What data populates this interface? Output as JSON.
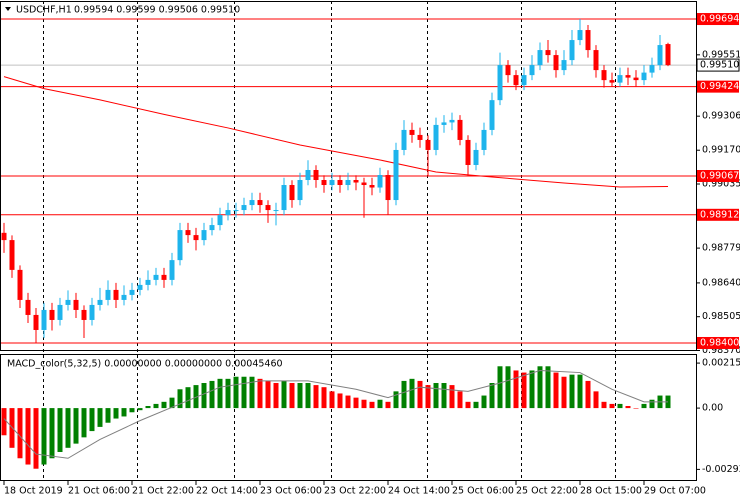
{
  "chart_data": {
    "type": "candlestick",
    "title": "USDCHF,H1",
    "subtitle": "0.99594 0.99599 0.99506 0.99510",
    "open": [
      0.9884,
      0.98811,
      0.98692,
      0.98572,
      0.98512,
      0.98452,
      0.98532,
      0.98492,
      0.98552,
      0.98572,
      0.98532,
      0.98492,
      0.98552,
      0.98572,
      0.98612,
      0.98572,
      0.98592,
      0.98612,
      0.98632,
      0.98652,
      0.98672,
      0.98652,
      0.98731,
      0.98851,
      0.98831,
      0.98811,
      0.98851,
      0.98871,
      0.98911,
      0.98931,
      0.98931,
      0.98951,
      0.98971,
      0.98951,
      0.98931,
      0.98931,
      0.99031,
      0.98971,
      0.99051,
      0.99091,
      0.99051,
      0.99031,
      0.99051,
      0.99031,
      0.99051,
      0.99041,
      0.99031,
      0.99021,
      0.99071,
      0.98971,
      0.99171,
      0.99251,
      0.99231,
      0.99211,
      0.99171,
      0.99271,
      0.99281,
      0.99291,
      0.99211,
      0.99111,
      0.99171,
      0.99251,
      0.9937,
      0.9951,
      0.9947,
      0.9943,
      0.9947,
      0.9951,
      0.9957,
      0.9955,
      0.9949,
      0.9953,
      0.9961,
      0.9965,
      0.9957,
      0.9949,
      0.9945,
      0.9944,
      0.9947,
      0.9946,
      0.9945,
      0.9948,
      0.9951,
      0.99594
    ],
    "high": [
      0.9888,
      0.9883,
      0.9871,
      0.986,
      0.9854,
      0.9856,
      0.9856,
      0.9858,
      0.9861,
      0.986,
      0.9855,
      0.9858,
      0.9862,
      0.9865,
      0.9864,
      0.9863,
      0.9864,
      0.9866,
      0.9869,
      0.987,
      0.987,
      0.9876,
      0.9888,
      0.9888,
      0.9886,
      0.9888,
      0.989,
      0.9894,
      0.9896,
      0.9896,
      0.9898,
      0.99,
      0.99,
      0.9897,
      0.9896,
      0.9906,
      0.9905,
      0.9908,
      0.9913,
      0.9911,
      0.9907,
      0.9908,
      0.9907,
      0.9908,
      0.9907,
      0.9906,
      0.9906,
      0.991,
      0.9909,
      0.992,
      0.9929,
      0.9928,
      0.9926,
      0.9923,
      0.993,
      0.9931,
      0.9932,
      0.9931,
      0.9923,
      0.992,
      0.9928,
      0.994,
      0.9956,
      0.9953,
      0.9949,
      0.995,
      0.9955,
      0.996,
      0.9961,
      0.9957,
      0.9957,
      0.9965,
      0.99694,
      0.9967,
      0.9959,
      0.9951,
      0.9948,
      0.995,
      0.995,
      0.9949,
      0.9951,
      0.9954,
      0.9963,
      0.99599
    ],
    "low": [
      0.9876,
      0.9866,
      0.9854,
      0.9848,
      0.984,
      0.9842,
      0.9845,
      0.9847,
      0.9853,
      0.985,
      0.9842,
      0.9847,
      0.9853,
      0.9855,
      0.9854,
      0.9855,
      0.9857,
      0.9859,
      0.9861,
      0.9863,
      0.9862,
      0.9863,
      0.9871,
      0.988,
      0.9877,
      0.9879,
      0.9883,
      0.9885,
      0.9889,
      0.989,
      0.9891,
      0.9893,
      0.9892,
      0.9888,
      0.9887,
      0.9891,
      0.9894,
      0.9895,
      0.9903,
      0.9902,
      0.99,
      0.9901,
      0.99,
      0.9901,
      0.9901,
      0.989,
      0.9899,
      0.99,
      0.98912,
      0.9895,
      0.9915,
      0.992,
      0.9918,
      0.99067,
      0.9915,
      0.9924,
      0.9925,
      0.9919,
      0.99067,
      0.9909,
      0.9915,
      0.9923,
      0.9935,
      0.9944,
      0.9941,
      0.9941,
      0.9945,
      0.9949,
      0.9952,
      0.9946,
      0.9947,
      0.9951,
      0.9959,
      0.9954,
      0.9946,
      0.9942,
      0.99424,
      0.99424,
      0.9943,
      0.99424,
      0.9943,
      0.9946,
      0.9949,
      0.99506
    ],
    "close": [
      0.98811,
      0.98692,
      0.98572,
      0.98512,
      0.98452,
      0.98532,
      0.98492,
      0.98552,
      0.98572,
      0.98532,
      0.98492,
      0.98552,
      0.98572,
      0.98612,
      0.98572,
      0.98592,
      0.98612,
      0.98632,
      0.98652,
      0.98672,
      0.98652,
      0.98731,
      0.98851,
      0.98831,
      0.98811,
      0.98851,
      0.98871,
      0.98911,
      0.98931,
      0.98931,
      0.98951,
      0.98971,
      0.98951,
      0.98931,
      0.98931,
      0.99031,
      0.98971,
      0.99051,
      0.99091,
      0.99051,
      0.99031,
      0.99051,
      0.99031,
      0.99051,
      0.99041,
      0.99031,
      0.99021,
      0.99071,
      0.98971,
      0.99171,
      0.99251,
      0.99231,
      0.99211,
      0.99171,
      0.99271,
      0.99281,
      0.99291,
      0.99211,
      0.99111,
      0.99171,
      0.99251,
      0.9937,
      0.9951,
      0.9947,
      0.9943,
      0.9947,
      0.9951,
      0.9957,
      0.9955,
      0.9949,
      0.9953,
      0.9961,
      0.9965,
      0.9957,
      0.9949,
      0.9945,
      0.9944,
      0.9947,
      0.9946,
      0.9945,
      0.9948,
      0.9951,
      0.9959,
      0.9951
    ],
    "up_color": "#1eb4ec",
    "down_color": "#ff0000",
    "xlim": [
      -0.5,
      86.125
    ],
    "xticks": [
      {
        "value": 0,
        "label": "18 Oct 2019"
      },
      {
        "value": 8,
        "label": "21 Oct 06:00"
      },
      {
        "value": 16,
        "label": "21 Oct 22:00"
      },
      {
        "value": 24,
        "label": "22 Oct 14:00"
      },
      {
        "value": 32,
        "label": "23 Oct 06:00"
      },
      {
        "value": 40,
        "label": "23 Oct 22:00"
      },
      {
        "value": 48,
        "label": "24 Oct 14:00"
      },
      {
        "value": 56,
        "label": "25 Oct 06:00"
      },
      {
        "value": 64,
        "label": "25 Oct 22:00"
      },
      {
        "value": 72,
        "label": "28 Oct 15:00"
      },
      {
        "value": 80,
        "label": "29 Oct 07:00"
      }
    ],
    "ylim": [
      0.98372,
      0.99766
    ],
    "yticks": [
      0.99551,
      0.99306,
      {
        "value": 0.9917,
        "label": "0.99170"
      },
      0.99035,
      0.98779,
      {
        "value": 0.9864,
        "label": "0.98640"
      },
      0.98505,
      {
        "value": 0.9837,
        "label": "0.98370"
      }
    ],
    "levels": [
      0.99694,
      0.99424,
      0.99067,
      0.98912,
      {
        "value": 0.984,
        "label": "0.98400"
      }
    ],
    "level_color": "#ff0000",
    "bid": {
      "value": 0.9951,
      "label": "0.99510"
    },
    "bid_color": "#c0c0c0",
    "ma": {
      "color": "#ff0000",
      "x": [
        0,
        5,
        12,
        20,
        28,
        37,
        47,
        54,
        61,
        70,
        77,
        83
      ],
      "values": [
        0.99464,
        0.99416,
        0.99371,
        0.99313,
        0.99259,
        0.99191,
        0.99131,
        0.99083,
        0.99063,
        0.99039,
        0.99023,
        0.99025
      ]
    },
    "macd": {
      "type": "bar",
      "title": "MACD_color(5,32,5) 0.00000000 0.00000000 0.00045460",
      "values": [
        -0.0013,
        -0.0019,
        -0.0024,
        -0.0027,
        -0.0029,
        -0.0027,
        -0.0024,
        -0.0021,
        -0.0019,
        -0.0017,
        -0.0014,
        -0.0011,
        -0.0009,
        -0.0007,
        -0.0005,
        -0.0004,
        -0.0002,
        -0.0001,
        0.0001,
        0.0002,
        0.0003,
        0.0005,
        0.0009,
        0.001,
        0.0011,
        0.0012,
        0.0013,
        0.0014,
        0.0014,
        0.0015,
        0.0015,
        0.0015,
        0.0014,
        0.0013,
        0.0012,
        0.0013,
        0.0012,
        0.0012,
        0.0012,
        0.0011,
        0.001,
        0.0008,
        0.0007,
        0.0006,
        0.0005,
        0.0004,
        0.0003,
        0.0004,
        0.0003,
        0.0008,
        0.0013,
        0.0014,
        0.0013,
        0.0011,
        0.0012,
        0.0012,
        0.0011,
        0.0008,
        0.0003,
        0.0003,
        0.0006,
        0.0012,
        0.002,
        0.002,
        0.0018,
        0.0017,
        0.0018,
        0.002,
        0.002,
        0.0017,
        0.0015,
        0.0016,
        0.0016,
        0.0013,
        0.0008,
        0.0003,
        0.0002,
        0.0002,
        0.0001,
        0,
        0.0002,
        0.0004,
        0.0006,
        0.0006
      ],
      "up_color": "#008000",
      "down_color": "#ff0000",
      "signal": {
        "color": "#808080",
        "x": [
          0,
          4,
          8,
          12,
          17,
          22,
          27,
          32,
          38,
          44,
          48,
          52,
          58,
          62,
          67,
          72,
          76,
          80,
          83
        ],
        "values": [
          -0.0005,
          -0.0022,
          -0.0024,
          -0.0015,
          -0.0006,
          0.0002,
          0.001,
          0.0013,
          0.0013,
          0.0009,
          0.0005,
          0.001,
          0.0008,
          0.0012,
          0.0018,
          0.0017,
          0.0009,
          0.0003,
          0.0003
        ]
      },
      "ylim": [
        -0.00344,
        0.00254
      ],
      "yticks": [
        0.0021531,
        {
          "value": 0,
          "label": "0.00"
        },
        -0.002932
      ]
    }
  }
}
